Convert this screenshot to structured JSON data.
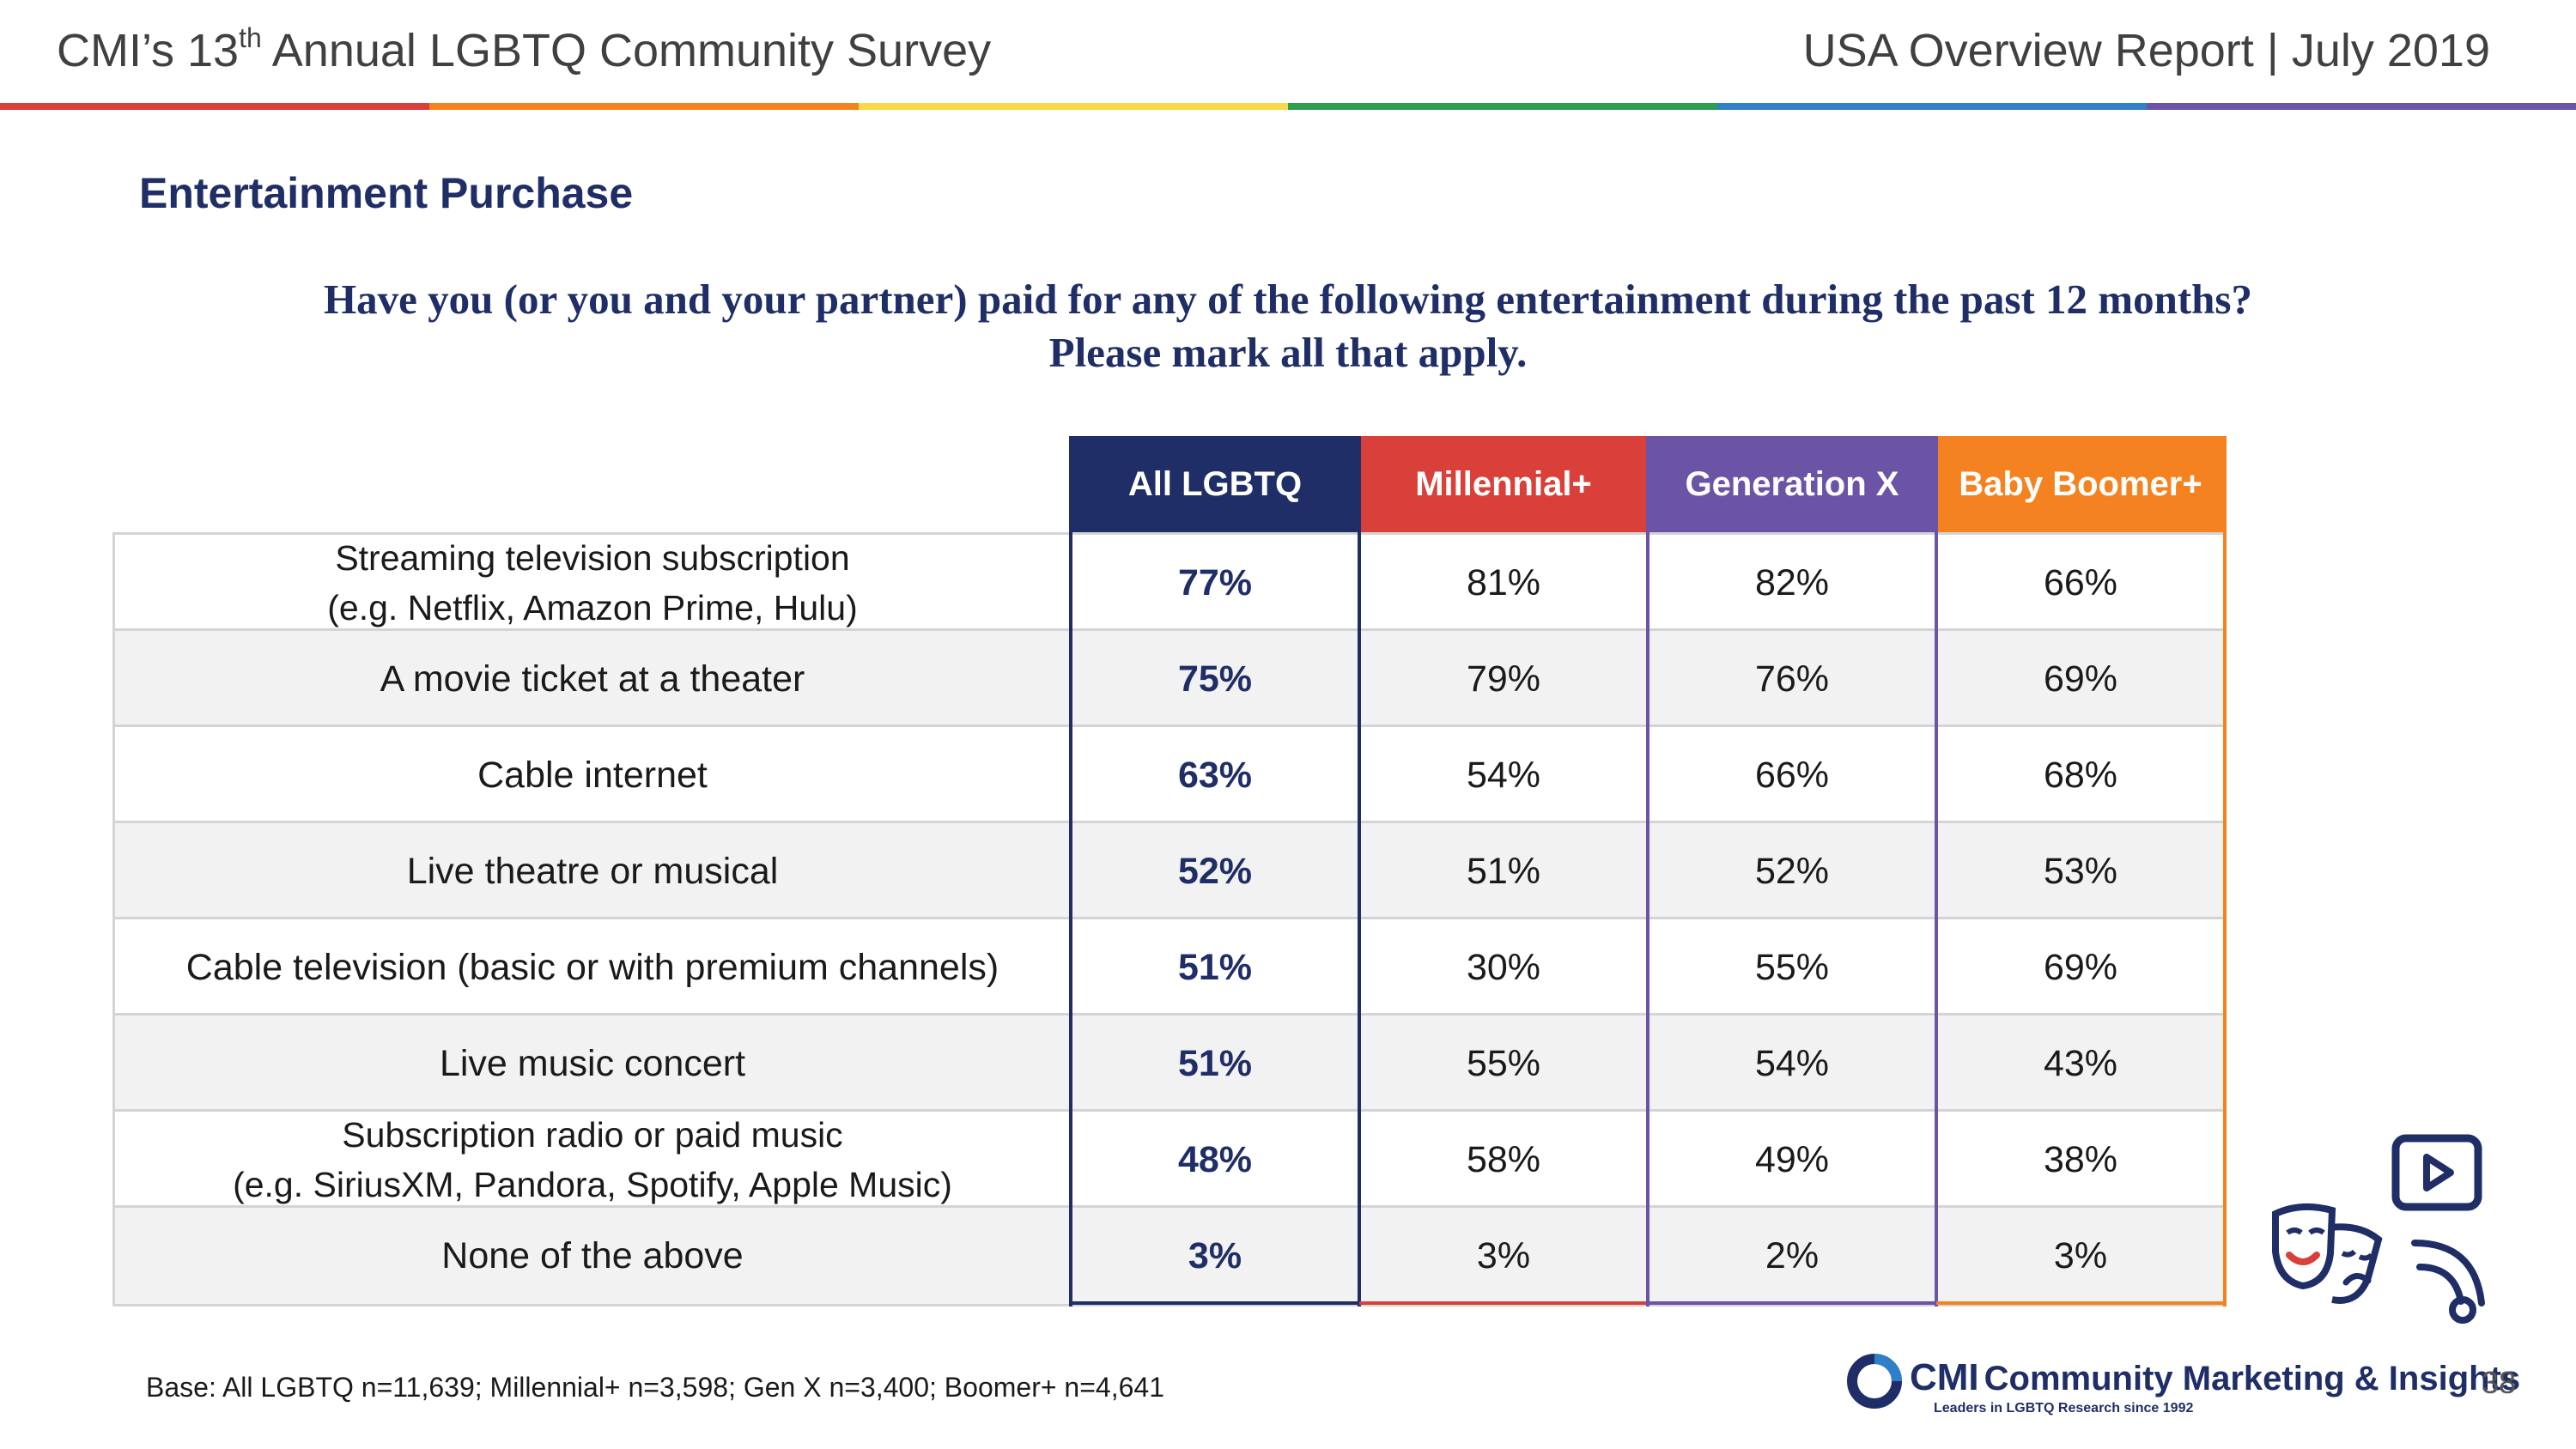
{
  "header": {
    "left_prefix": "CMI’s 13",
    "left_sup": "th",
    "left_suffix": " Annual LGBTQ Community Survey",
    "right": "USA Overview Report | July 2019"
  },
  "rainbow_colors": [
    "#d9403a",
    "#f58220",
    "#f9d949",
    "#2e9e4f",
    "#2f80c8",
    "#6b53a6"
  ],
  "section_title": "Entertainment Purchase",
  "question": {
    "line1": "Have you (or you and your partner) paid for any of the following entertainment during the past 12 months?",
    "line2": "Please mark all that apply."
  },
  "table": {
    "columns": [
      {
        "label": "All LGBTQ",
        "color": "#1f2e66"
      },
      {
        "label": "Millennial+",
        "color": "#d9403a"
      },
      {
        "label": "Generation X",
        "color": "#6b53a6"
      },
      {
        "label": "Baby Boomer+",
        "color": "#f58220"
      }
    ],
    "rows": [
      {
        "label": "Streaming television subscription",
        "sublabel": "(e.g. Netflix, Amazon Prime, Hulu)",
        "values": [
          "77%",
          "81%",
          "82%",
          "66%"
        ]
      },
      {
        "label": "A movie ticket at a theater",
        "sublabel": "",
        "values": [
          "75%",
          "79%",
          "76%",
          "69%"
        ]
      },
      {
        "label": "Cable internet",
        "sublabel": "",
        "values": [
          "63%",
          "54%",
          "66%",
          "68%"
        ]
      },
      {
        "label": "Live theatre or musical",
        "sublabel": "",
        "values": [
          "52%",
          "51%",
          "52%",
          "53%"
        ]
      },
      {
        "label": "Cable television (basic or with premium channels)",
        "sublabel": "",
        "values": [
          "51%",
          "30%",
          "55%",
          "69%"
        ]
      },
      {
        "label": "Live music concert",
        "sublabel": "",
        "values": [
          "51%",
          "55%",
          "54%",
          "43%"
        ]
      },
      {
        "label": "Subscription radio or paid music",
        "sublabel": "(e.g. SiriusXM, Pandora, Spotify, Apple Music)",
        "values": [
          "48%",
          "58%",
          "49%",
          "38%"
        ]
      },
      {
        "label": "None of the above",
        "sublabel": "",
        "values": [
          "3%",
          "3%",
          "2%",
          "3%"
        ]
      }
    ]
  },
  "footnote": "Base: All LGBTQ n=11,639; Millennial+ n=3,598; Gen X n=3,400; Boomer+ n=4,641",
  "brand": {
    "short": "CMI",
    "name": "Community Marketing & Insights",
    "tagline": "Leaders in LGBTQ Research since 1992"
  },
  "page_number": "38",
  "icons": {
    "logo": "cmi-ring-logo-icon",
    "illustration": [
      "theater-masks-icon",
      "video-play-icon",
      "broadcast-icon"
    ]
  }
}
